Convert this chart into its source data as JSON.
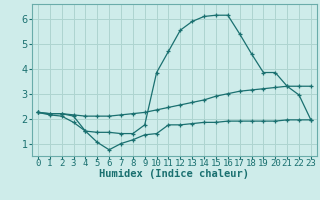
{
  "xlabel": "Humidex (Indice chaleur)",
  "bg_color": "#ceecea",
  "grid_color": "#aed4d0",
  "line_color": "#1a7070",
  "spine_color": "#6aacaa",
  "xlim": [
    -0.5,
    23.5
  ],
  "ylim": [
    0.5,
    6.6
  ],
  "xticks": [
    0,
    1,
    2,
    3,
    4,
    5,
    6,
    7,
    8,
    9,
    10,
    11,
    12,
    13,
    14,
    15,
    16,
    17,
    18,
    19,
    20,
    21,
    22,
    23
  ],
  "yticks": [
    1,
    2,
    3,
    4,
    5,
    6
  ],
  "series1_x": [
    0,
    1,
    2,
    3,
    4,
    5,
    6,
    7,
    8,
    9,
    10,
    11,
    12,
    13,
    14,
    15,
    16,
    17,
    18,
    19,
    20,
    21,
    22,
    23
  ],
  "series1_y": [
    2.25,
    2.15,
    2.1,
    1.85,
    1.5,
    1.05,
    0.75,
    1.0,
    1.15,
    1.35,
    1.4,
    1.75,
    1.75,
    1.8,
    1.85,
    1.85,
    1.9,
    1.9,
    1.9,
    1.9,
    1.9,
    1.95,
    1.95,
    1.95
  ],
  "series2_x": [
    0,
    1,
    2,
    3,
    4,
    5,
    6,
    7,
    8,
    9,
    10,
    11,
    12,
    13,
    14,
    15,
    16,
    17,
    18,
    19,
    20,
    21,
    22,
    23
  ],
  "series2_y": [
    2.25,
    2.2,
    2.2,
    2.15,
    2.1,
    2.1,
    2.1,
    2.15,
    2.2,
    2.25,
    2.35,
    2.45,
    2.55,
    2.65,
    2.75,
    2.9,
    3.0,
    3.1,
    3.15,
    3.2,
    3.25,
    3.3,
    3.3,
    3.3
  ],
  "series3_x": [
    0,
    1,
    2,
    3,
    4,
    5,
    6,
    7,
    8,
    9,
    10,
    11,
    12,
    13,
    14,
    15,
    16,
    17,
    18,
    19,
    20,
    21,
    22,
    23
  ],
  "series3_y": [
    2.25,
    2.2,
    2.2,
    2.1,
    1.5,
    1.45,
    1.45,
    1.4,
    1.4,
    1.75,
    3.85,
    4.7,
    5.55,
    5.9,
    6.1,
    6.15,
    6.15,
    5.4,
    4.6,
    3.85,
    3.85,
    3.3,
    2.95,
    1.95
  ],
  "tick_fontsize": 6.5,
  "xlabel_fontsize": 7.5,
  "lw": 0.9,
  "ms": 2.2
}
